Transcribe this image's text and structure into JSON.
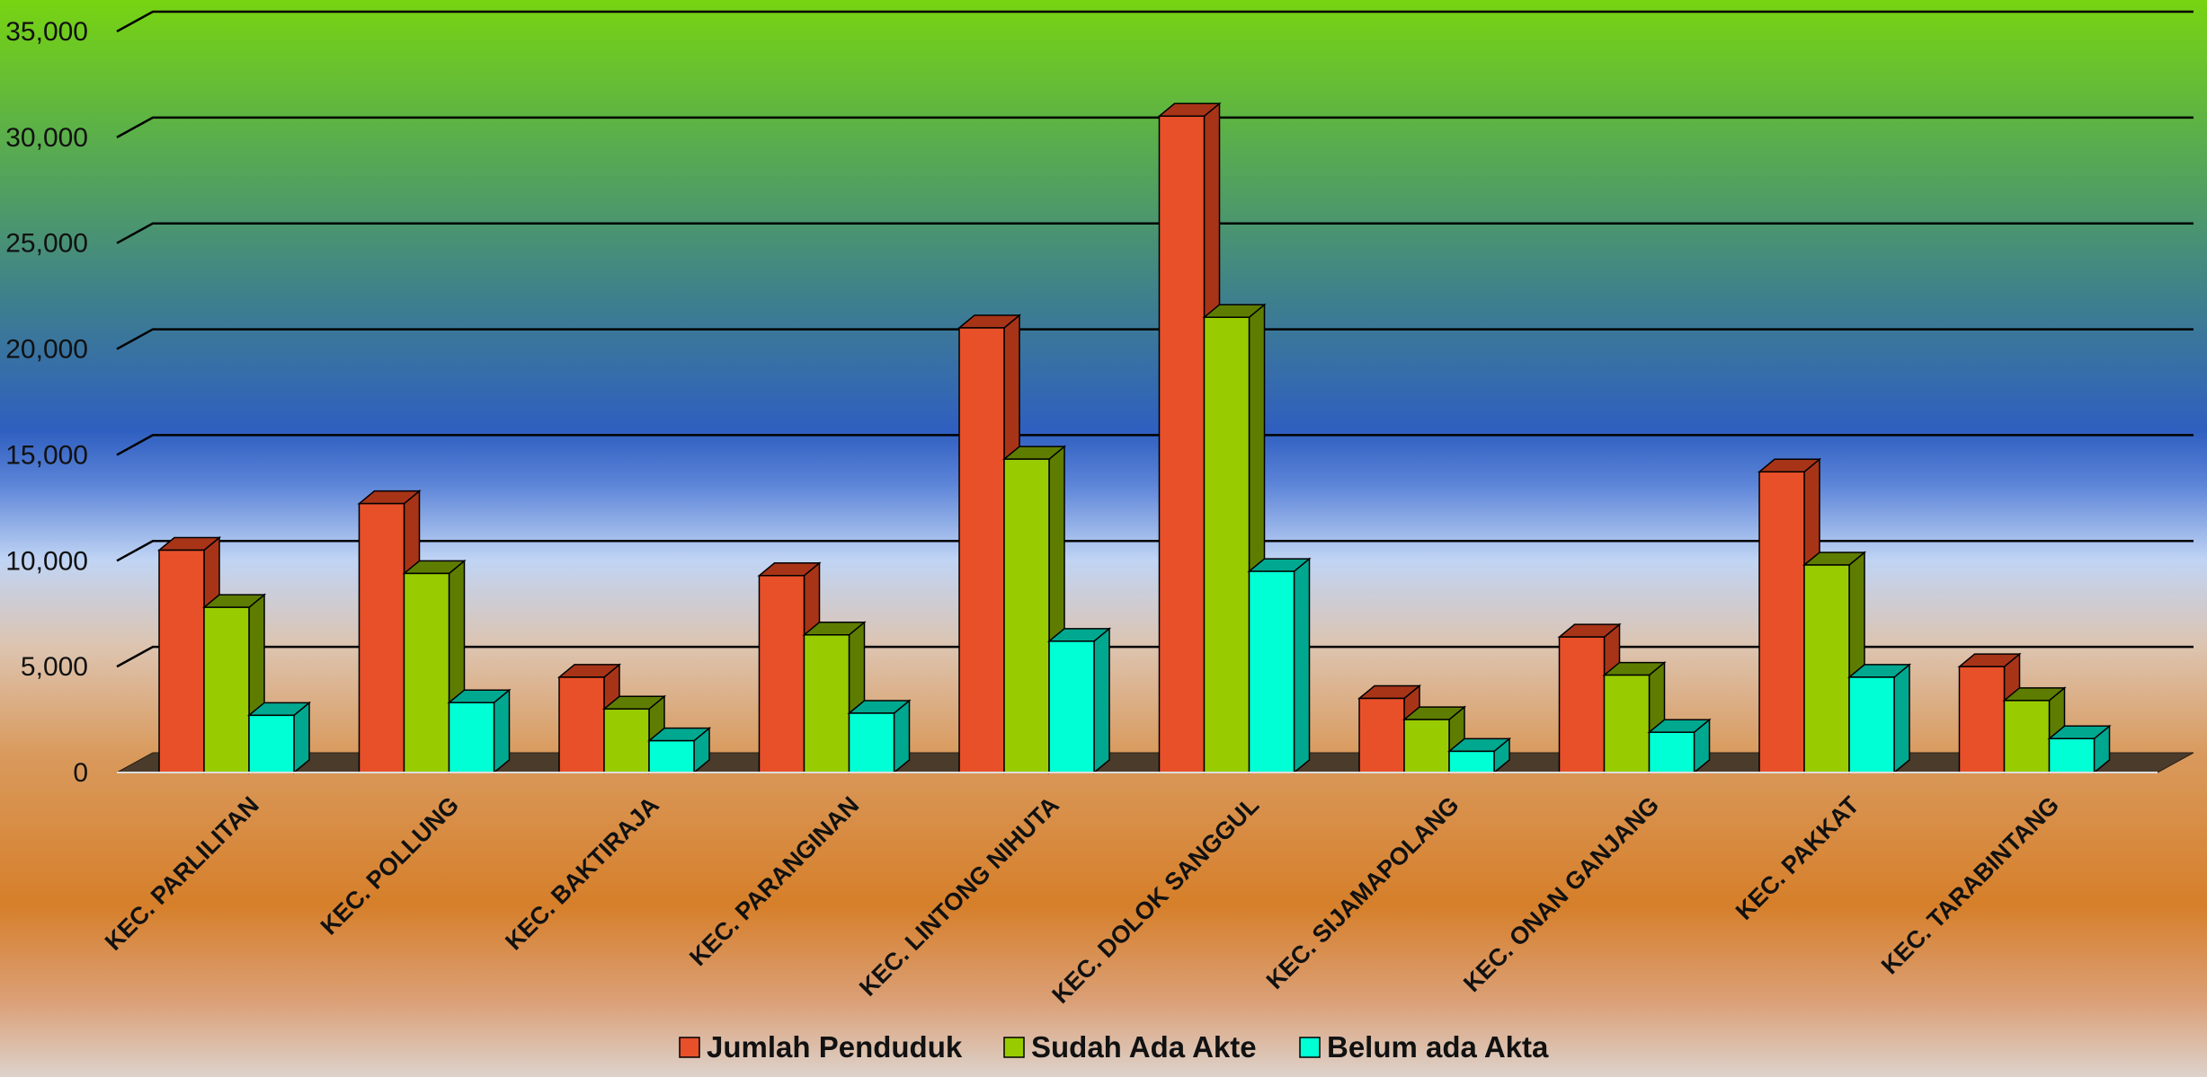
{
  "chart_data": {
    "type": "bar",
    "title": "",
    "xlabel": "",
    "ylabel": "",
    "ylim": [
      0,
      35000
    ],
    "yticks": [
      0,
      5000,
      10000,
      15000,
      20000,
      25000,
      30000,
      35000
    ],
    "ytick_labels": [
      "0",
      "5,000",
      "10,000",
      "15,000",
      "20,000",
      "25,000",
      "30,000",
      "35,000"
    ],
    "grid": true,
    "legend_position": "bottom",
    "categories": [
      "KEC. PARLILITAN",
      "KEC. POLLUNG",
      "KEC. BAKTIRAJA",
      "KEC. PARANGINAN",
      "KEC. LINTONG NIHUTA",
      "KEC. DOLOK SANGGUL",
      "KEC. SIJAMAPOLANG",
      "KEC. ONAN GANJANG",
      "KEC. PAKKAT",
      "KEC. TARABINTANG"
    ],
    "series": [
      {
        "name": "Jumlah Penduduk",
        "color": "#e8502a",
        "side_color": "#a83418",
        "values": [
          10500,
          12700,
          4500,
          9300,
          21000,
          31000,
          3500,
          6400,
          14200,
          5000
        ]
      },
      {
        "name": "Sudah Ada Akte",
        "color": "#99cc00",
        "side_color": "#5e7d00",
        "values": [
          7800,
          9400,
          3000,
          6500,
          14800,
          21500,
          2500,
          4600,
          9800,
          3400
        ]
      },
      {
        "name": "Belum ada Akta",
        "color": "#00ffd5",
        "side_color": "#00a890",
        "values": [
          2700,
          3300,
          1500,
          2800,
          6200,
          9500,
          1000,
          1900,
          4500,
          1600
        ]
      }
    ]
  }
}
